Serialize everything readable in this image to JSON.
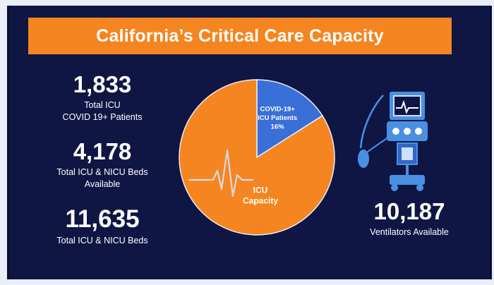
{
  "title": "California’s Critical Care Capacity",
  "stats": {
    "icu_patients": {
      "value": "1,833",
      "label_line1": "Total ICU",
      "label_line2": "COVID 19+ Patients"
    },
    "icu_nicu_available": {
      "value": "4,178",
      "label_line1": "Total ICU & NICU Beds",
      "label_line2": "Available"
    },
    "icu_nicu_total": {
      "value": "11,635",
      "label_line1": "Total ICU & NICU Beds"
    },
    "ventilators": {
      "value": "10,187",
      "label_line1": "Ventilators Available"
    }
  },
  "chart_data": {
    "type": "pie",
    "slices": [
      {
        "label_line1": "COVID-19+",
        "label_line2": "ICU Patients",
        "value_label": "16%",
        "value": 16,
        "color": "#3a6fd8"
      },
      {
        "label_line1": "ICU",
        "label_line2": "Capacity",
        "value": 84,
        "color": "#f58520"
      }
    ]
  },
  "colors": {
    "background": "#0f1644",
    "title_bar": "#f58520",
    "pie_covid": "#3a6fd8",
    "pie_capacity": "#f58520",
    "ventilator_icon": "#4a90e2"
  },
  "icons": {
    "heartbeat": "heartbeat-icon",
    "ventilator": "ventilator-icon"
  }
}
